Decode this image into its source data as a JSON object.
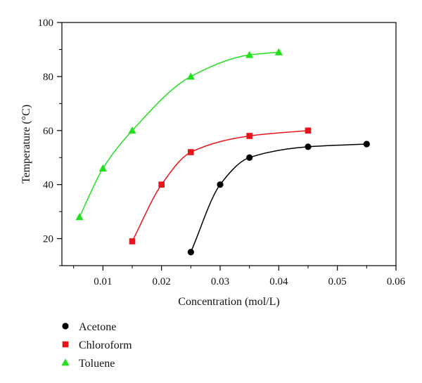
{
  "chart_data": {
    "type": "line",
    "title": "",
    "xlabel": "Concentration (mol/L)",
    "ylabel": "Temperature (°C)",
    "xlim": [
      0.003,
      0.06
    ],
    "ylim": [
      10,
      100
    ],
    "xticks": [
      0.01,
      0.02,
      0.03,
      0.04,
      0.05,
      0.06
    ],
    "xtick_labels": [
      "0.01",
      "0.02",
      "0.03",
      "0.04",
      "0.05",
      "0.06"
    ],
    "yticks": [
      20,
      40,
      60,
      80,
      100
    ],
    "ytick_labels": [
      "20",
      "40",
      "60",
      "80",
      "100"
    ],
    "grid": false,
    "legend_position": "bottom-left, below plot",
    "series": [
      {
        "name": "Acetone",
        "color": "#000000",
        "marker": "circle",
        "x": [
          0.025,
          0.03,
          0.035,
          0.045,
          0.055
        ],
        "y": [
          15,
          40,
          50,
          54,
          55
        ]
      },
      {
        "name": "Chloroform",
        "color": "#e8141c",
        "marker": "square",
        "x": [
          0.015,
          0.02,
          0.025,
          0.035,
          0.045
        ],
        "y": [
          19,
          40,
          52,
          58,
          60
        ]
      },
      {
        "name": "Toluene",
        "color": "#22e01e",
        "marker": "triangle",
        "x": [
          0.006,
          0.01,
          0.015,
          0.025,
          0.035,
          0.04
        ],
        "y": [
          28,
          46,
          60,
          80,
          88,
          89
        ]
      }
    ]
  }
}
